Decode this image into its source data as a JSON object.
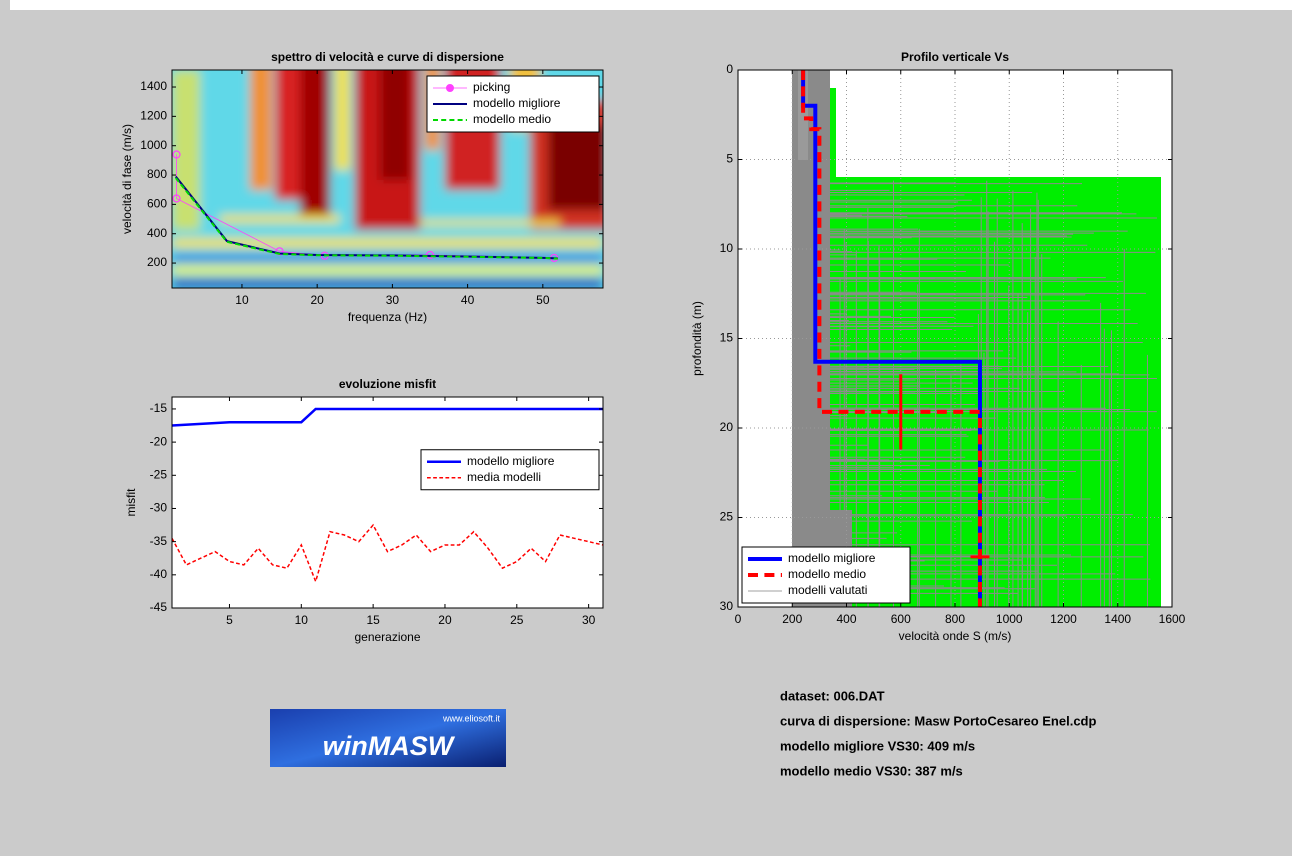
{
  "chart_data": [
    {
      "type": "line",
      "title": "spettro di velocità e curve di dispersione",
      "x_label": "frequenza (Hz)",
      "y_label": "velocità di fase (m/s)",
      "xlim": [
        0.7,
        58
      ],
      "ylim": [
        30,
        1516
      ],
      "xticks": [
        10,
        20,
        30,
        40,
        50
      ],
      "yticks": [
        200,
        400,
        600,
        800,
        1000,
        1200,
        1400
      ],
      "grid": false,
      "legend": "upper right",
      "series": [
        {
          "name": "picking",
          "color": "#ff40ff",
          "linewidth": 0.8,
          "linestyle": "solid",
          "marker": "o",
          "x": [
            1.3,
            1.3,
            15,
            21,
            35,
            51.5
          ],
          "values": [
            940,
            640,
            280,
            250,
            255,
            235
          ]
        },
        {
          "name": "modello migliore",
          "color": "#000080",
          "linewidth": 2,
          "linestyle": "solid",
          "x": [
            1.2,
            8,
            15,
            20,
            30,
            40,
            50,
            52
          ],
          "values": [
            790,
            350,
            265,
            255,
            252,
            245,
            235,
            232
          ]
        },
        {
          "name": "modello medio",
          "color": "#00d800",
          "linewidth": 2,
          "linestyle": "dashed",
          "x": [
            1.2,
            8,
            15,
            20,
            30,
            40,
            50,
            52
          ],
          "values": [
            780,
            345,
            262,
            253,
            250,
            243,
            235,
            230
          ]
        }
      ]
    },
    {
      "type": "line",
      "title": "evoluzione misfit",
      "x_label": "generazione",
      "y_label": "misfit",
      "xlim": [
        1,
        31
      ],
      "ylim": [
        -45,
        -13.2
      ],
      "xticks": [
        5,
        10,
        15,
        20,
        25,
        30
      ],
      "yticks": [
        -45,
        -40,
        -35,
        -30,
        -25,
        -20,
        -15
      ],
      "grid": false,
      "legend": "right",
      "series": [
        {
          "name": "modello migliore",
          "color": "#0000ff",
          "linewidth": 2.5,
          "linestyle": "solid",
          "x": [
            1,
            5,
            10,
            11,
            31
          ],
          "values": [
            -17.5,
            -17,
            -17,
            -15,
            -15
          ]
        },
        {
          "name": "media modelli",
          "color": "#ff0000",
          "linewidth": 1.5,
          "linestyle": "dashed",
          "x": [
            1,
            2,
            3,
            4,
            5,
            6,
            7,
            8,
            9,
            10,
            11,
            12,
            13,
            14,
            15,
            16,
            17,
            18,
            19,
            20,
            21,
            22,
            23,
            24,
            25,
            26,
            27,
            28,
            29,
            30,
            31
          ],
          "values": [
            -34.5,
            -38.5,
            -37.5,
            -36.5,
            -38,
            -38.5,
            -36,
            -38.5,
            -39,
            -35.5,
            -41,
            -33.5,
            -34,
            -35,
            -32.5,
            -36.5,
            -35.5,
            -34,
            -36.5,
            -35.5,
            -35.5,
            -33.5,
            -36,
            -39,
            -38,
            -36,
            -38,
            -34,
            -34.5,
            -35,
            -35.5
          ]
        }
      ]
    },
    {
      "type": "line",
      "title": "Profilo verticale Vs",
      "x_label": "velocità onde S (m/s)",
      "y_label": "profondità (m)",
      "xlim": [
        0,
        1600
      ],
      "ylim": [
        0,
        30
      ],
      "y_reversed": true,
      "xticks": [
        0,
        200,
        400,
        600,
        800,
        1000,
        1200,
        1400,
        1600
      ],
      "yticks": [
        0,
        5,
        10,
        15,
        20,
        25,
        30
      ],
      "grid": true,
      "legend": "lower left",
      "series": [
        {
          "name": "modello migliore",
          "color": "#0000ff",
          "linewidth": 4,
          "linestyle": "solid",
          "x": [
            240,
            240,
            285,
            285,
            892,
            892
          ],
          "values": [
            0,
            2,
            2,
            16.3,
            16.3,
            30
          ]
        },
        {
          "name": "modello medio",
          "color": "#ff0000",
          "linewidth": 4,
          "linestyle": "dashed",
          "x": [
            240,
            240,
            270,
            270,
            300,
            300,
            892,
            892
          ],
          "values": [
            0,
            2.7,
            2.7,
            3.3,
            3.3,
            19.1,
            19.1,
            30
          ]
        }
      ],
      "error_bars": [
        {
          "x": 600,
          "y": 19.1,
          "yerr": 2.1
        },
        {
          "x": 892,
          "y": 27.2,
          "xerr": 35
        }
      ],
      "extra_legend": {
        "name": "modelli valutati",
        "color": "#a0a0a0"
      }
    }
  ],
  "info": [
    "dataset: 006.DAT",
    "curva di dispersione: Masw PortoCesareo Enel.cdp",
    "modello migliore VS30: 409 m/s",
    "modello medio VS30: 387 m/s"
  ],
  "logo": {
    "url": "www.eliosoft.it",
    "name": "winMASW"
  }
}
